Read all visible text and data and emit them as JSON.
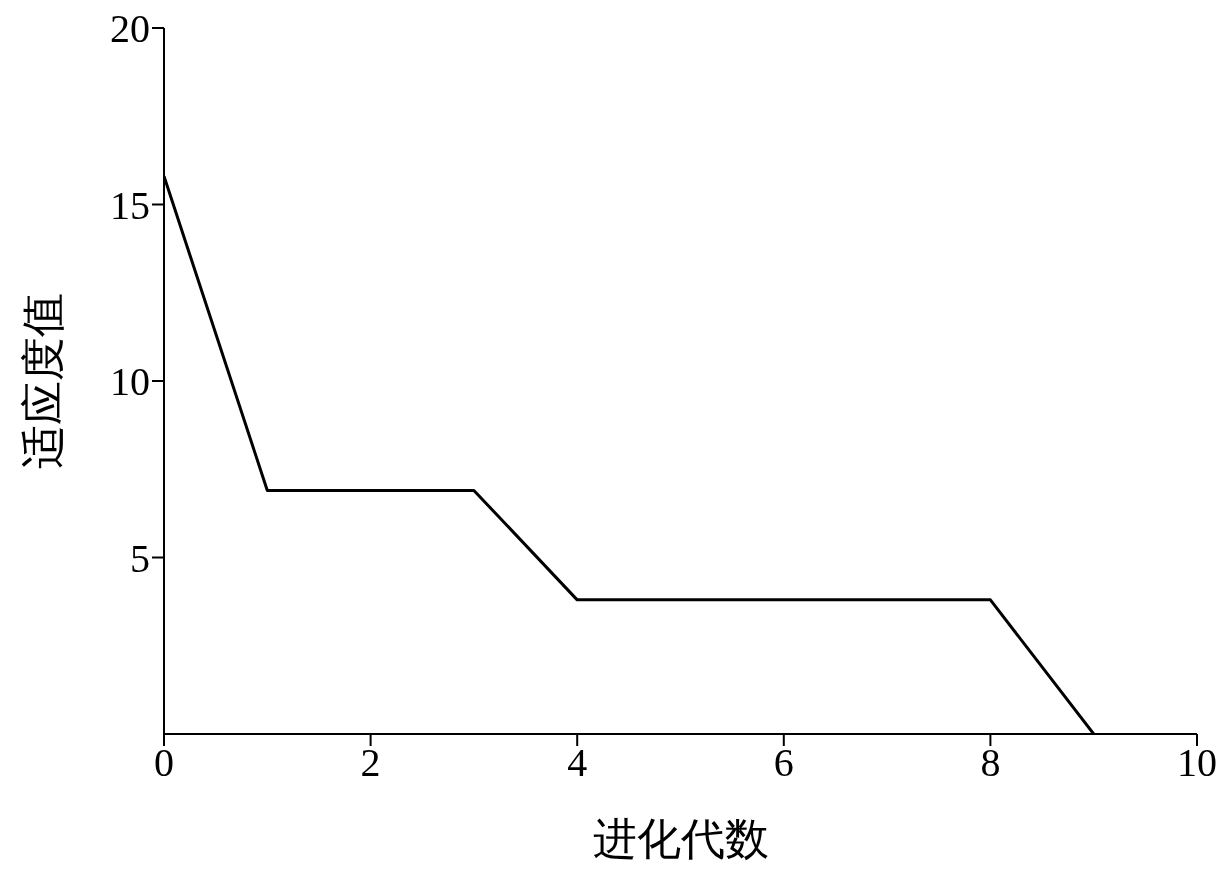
{
  "chart_data": {
    "type": "line",
    "xlabel": "进化代数",
    "ylabel": "适应度值",
    "x": [
      0,
      1,
      3,
      4,
      8,
      9
    ],
    "series": [
      {
        "color": "#000000",
        "values": [
          15.8,
          6.9,
          6.9,
          3.8,
          3.8,
          0
        ]
      }
    ],
    "xlim": [
      0,
      10
    ],
    "xticks": [
      0,
      2,
      4,
      6,
      8,
      10
    ],
    "ylim": [
      0,
      20
    ],
    "yticks": [
      5,
      10,
      15,
      20
    ],
    "grid": false,
    "legend": false,
    "marker": "none",
    "line_style": "solid"
  }
}
